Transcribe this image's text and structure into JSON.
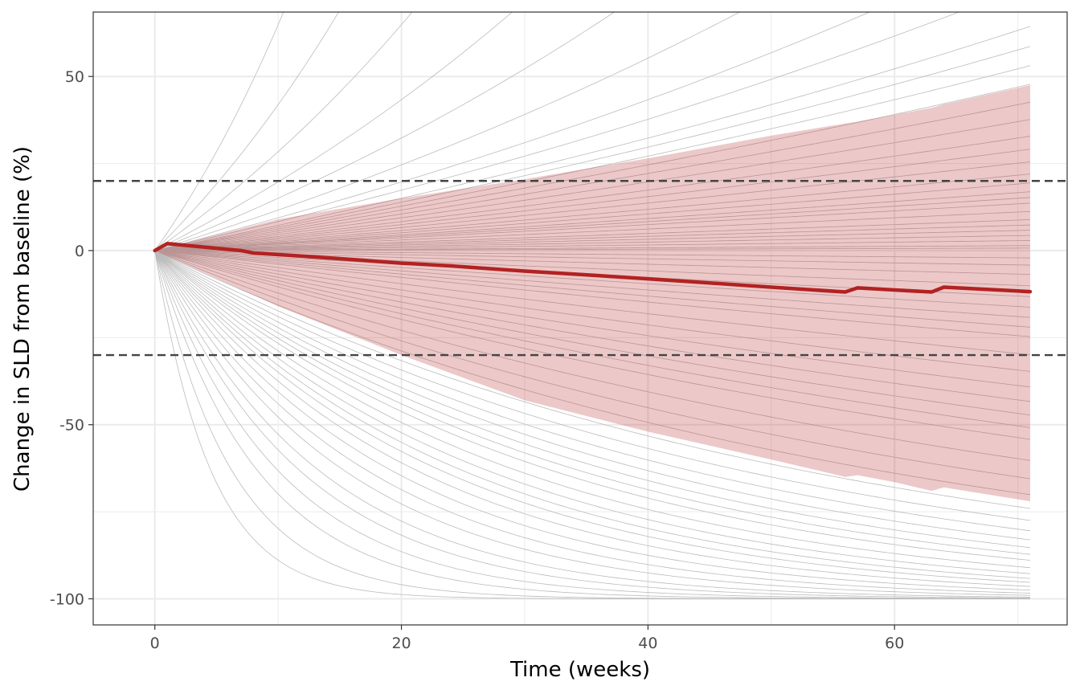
{
  "chart_data": {
    "type": "line",
    "title": "",
    "xlabel": "Time (weeks)",
    "ylabel": "Change in SLD from baseline (%)",
    "xlim": [
      -5.0,
      74.0
    ],
    "ylim": [
      -107.5,
      68.5
    ],
    "x_ticks": [
      0,
      20,
      40,
      60
    ],
    "x_tick_labels": [
      "0",
      "20",
      "40",
      "60"
    ],
    "y_ticks": [
      -100,
      -50,
      0,
      50
    ],
    "y_tick_labels": [
      "-100",
      "-50",
      "0",
      "50"
    ],
    "grid": true,
    "legend": "none",
    "reference_lines": [
      20,
      -30
    ],
    "median": {
      "x": [
        0,
        1,
        4,
        7,
        8,
        12,
        17,
        18,
        20,
        24,
        30,
        36,
        40,
        45,
        50,
        56,
        57,
        60,
        63,
        64,
        71
      ],
      "y": [
        0,
        2,
        1,
        0,
        -0.7,
        -1.6,
        -2.8,
        -3.1,
        -3.6,
        -4.4,
        -5.9,
        -7.2,
        -8.1,
        -9.3,
        -10.5,
        -11.9,
        -10.7,
        -11.3,
        -11.9,
        -10.5,
        -11.8
      ]
    },
    "band": {
      "x": [
        0,
        10,
        20,
        30,
        40,
        50,
        56,
        57,
        60,
        63,
        64,
        71
      ],
      "upper": [
        0,
        9,
        15,
        20.5,
        26.5,
        33,
        36.5,
        37,
        39,
        41,
        42,
        47.5
      ],
      "lower": [
        0,
        -16,
        -30,
        -43,
        -52,
        -60,
        -65,
        -64.5,
        -66.5,
        -69,
        -68,
        -72
      ]
    },
    "individual_curves": {
      "x_max": 71,
      "growth_rates": [
        0.05,
        0.035,
        0.025,
        0.018,
        0.014,
        0.011,
        0.009,
        0.008,
        0.007,
        0.0065,
        0.006,
        0.0055,
        0.005,
        0.0045,
        0.004,
        0.0036,
        0.0032,
        0.0028,
        0.0025,
        0.0022,
        0.002,
        0.0018,
        0.0015,
        0.0012,
        0.001,
        0.0008,
        0.0006,
        0.0004,
        0.0002,
        0.0001
      ],
      "shrink_rates": [
        0.22,
        0.16,
        0.12,
        0.1,
        0.085,
        0.075,
        0.065,
        0.058,
        0.052,
        0.047,
        0.043,
        0.04,
        0.037,
        0.034,
        0.031,
        0.029,
        0.027,
        0.025,
        0.023,
        0.021,
        0.019,
        0.017,
        0.015,
        0.013,
        0.011,
        0.01,
        0.009,
        0.008,
        0.007,
        0.006,
        0.005,
        0.004,
        0.0035,
        0.003,
        0.0025,
        0.002,
        0.0015,
        0.001,
        0.0006,
        0.0003
      ]
    },
    "colors": {
      "median": "#b22222",
      "band": "#b22222",
      "individual": "#bbbbbb",
      "reference": "#444444",
      "grid": "#ebebeb",
      "panel_border": "#333333"
    }
  }
}
